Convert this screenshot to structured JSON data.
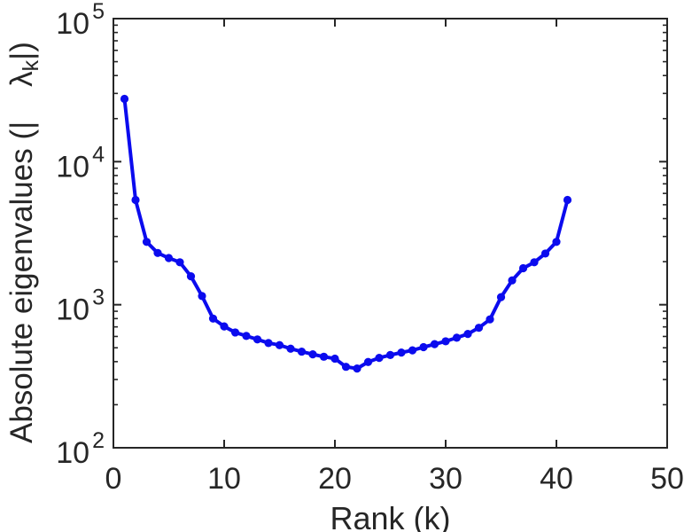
{
  "figure": {
    "background": "#ffffff"
  },
  "chart_data": {
    "type": "line",
    "title": "",
    "xlabel": "Rank (k)",
    "ylabel": "Absolute eigenvalues (|λ_k|)",
    "y_scale": "log",
    "xlim": [
      0,
      50
    ],
    "ylim_exponents": [
      2,
      5
    ],
    "x_ticks": [
      0,
      10,
      20,
      30,
      40,
      50
    ],
    "grid": false,
    "legend": "none",
    "x": [
      1,
      2,
      3,
      4,
      5,
      6,
      7,
      8,
      9,
      10,
      11,
      12,
      13,
      14,
      15,
      16,
      17,
      18,
      19,
      20,
      21,
      22,
      23,
      24,
      25,
      26,
      27,
      28,
      29,
      30,
      31,
      32,
      33,
      34,
      35,
      36,
      37,
      38,
      39,
      40,
      41
    ],
    "y": [
      27500,
      5400,
      2750,
      2300,
      2120,
      1980,
      1580,
      1150,
      800,
      705,
      640,
      605,
      572,
      540,
      522,
      493,
      470,
      450,
      433,
      420,
      368,
      358,
      398,
      425,
      445,
      463,
      480,
      505,
      530,
      555,
      588,
      625,
      690,
      790,
      1130,
      1480,
      1800,
      1980,
      2280,
      2750,
      5400
    ],
    "series": [
      {
        "name": "absolute-eigenvalues",
        "color": "#0b0bee",
        "marker": "circle"
      }
    ]
  },
  "axes": {
    "axis_color": "#262626",
    "xlabel": "Rank (k)",
    "ylabel_prefix": "Absolute eigenvalues (|    ",
    "ylabel_lambda": "λ",
    "ylabel_lambda_sub": "k",
    "ylabel_suffix": "|)",
    "x_tick_labels": [
      "0",
      "10",
      "20",
      "30",
      "40",
      "50"
    ],
    "y_tick_base": "10",
    "y_tick_exponents": [
      "2",
      "3",
      "4",
      "5"
    ]
  }
}
